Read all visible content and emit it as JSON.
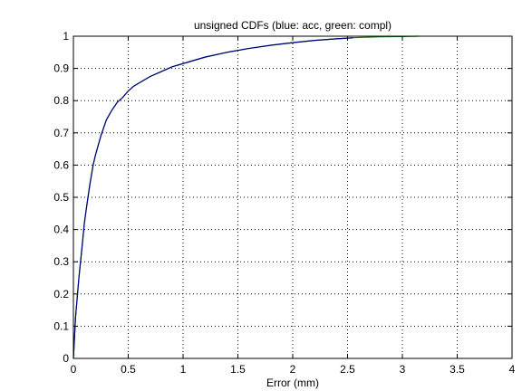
{
  "chart_data": {
    "type": "line",
    "title": "unsigned CDFs (blue: acc, green: compl)",
    "xlabel": "Error (mm)",
    "ylabel": "",
    "xlim": [
      0,
      4
    ],
    "ylim": [
      0,
      1
    ],
    "xticks": [
      "0",
      "0.5",
      "1",
      "1.5",
      "2",
      "2.5",
      "3",
      "3.5",
      "4"
    ],
    "yticks": [
      "0",
      "0.1",
      "0.2",
      "0.3",
      "0.4",
      "0.5",
      "0.6",
      "0.7",
      "0.8",
      "0.9",
      "1"
    ],
    "grid": true,
    "series": [
      {
        "color": "#000080",
        "x": [
          0,
          0.02,
          0.05,
          0.08,
          0.1,
          0.12,
          0.15,
          0.18,
          0.2,
          0.25,
          0.3,
          0.35,
          0.4,
          0.45,
          0.5,
          0.55,
          0.6,
          0.7,
          0.8,
          0.9,
          1.0,
          1.2,
          1.4,
          1.6,
          1.8,
          2.0,
          2.2,
          2.4,
          2.55
        ],
        "y": [
          0,
          0.13,
          0.25,
          0.35,
          0.42,
          0.47,
          0.54,
          0.6,
          0.63,
          0.69,
          0.74,
          0.77,
          0.795,
          0.81,
          0.83,
          0.845,
          0.855,
          0.875,
          0.89,
          0.905,
          0.915,
          0.935,
          0.95,
          0.962,
          0.972,
          0.98,
          0.987,
          0.992,
          0.995
        ]
      },
      {
        "color": "#008000",
        "x": [
          0,
          0.02,
          0.05,
          0.08,
          0.1,
          0.12,
          0.15,
          0.18,
          0.2,
          0.25,
          0.3,
          0.35,
          0.4,
          0.45,
          0.5,
          0.55,
          0.6,
          0.7,
          0.8,
          0.9,
          1.0,
          1.2,
          1.4,
          1.6,
          1.8,
          2.0,
          2.2,
          2.4,
          2.6,
          2.8,
          3.0,
          3.15
        ],
        "y": [
          0,
          0.13,
          0.25,
          0.35,
          0.42,
          0.47,
          0.54,
          0.6,
          0.63,
          0.69,
          0.74,
          0.77,
          0.795,
          0.81,
          0.83,
          0.845,
          0.855,
          0.875,
          0.89,
          0.905,
          0.915,
          0.935,
          0.95,
          0.962,
          0.972,
          0.98,
          0.987,
          0.992,
          0.996,
          0.998,
          0.999,
          1.0
        ]
      }
    ]
  }
}
